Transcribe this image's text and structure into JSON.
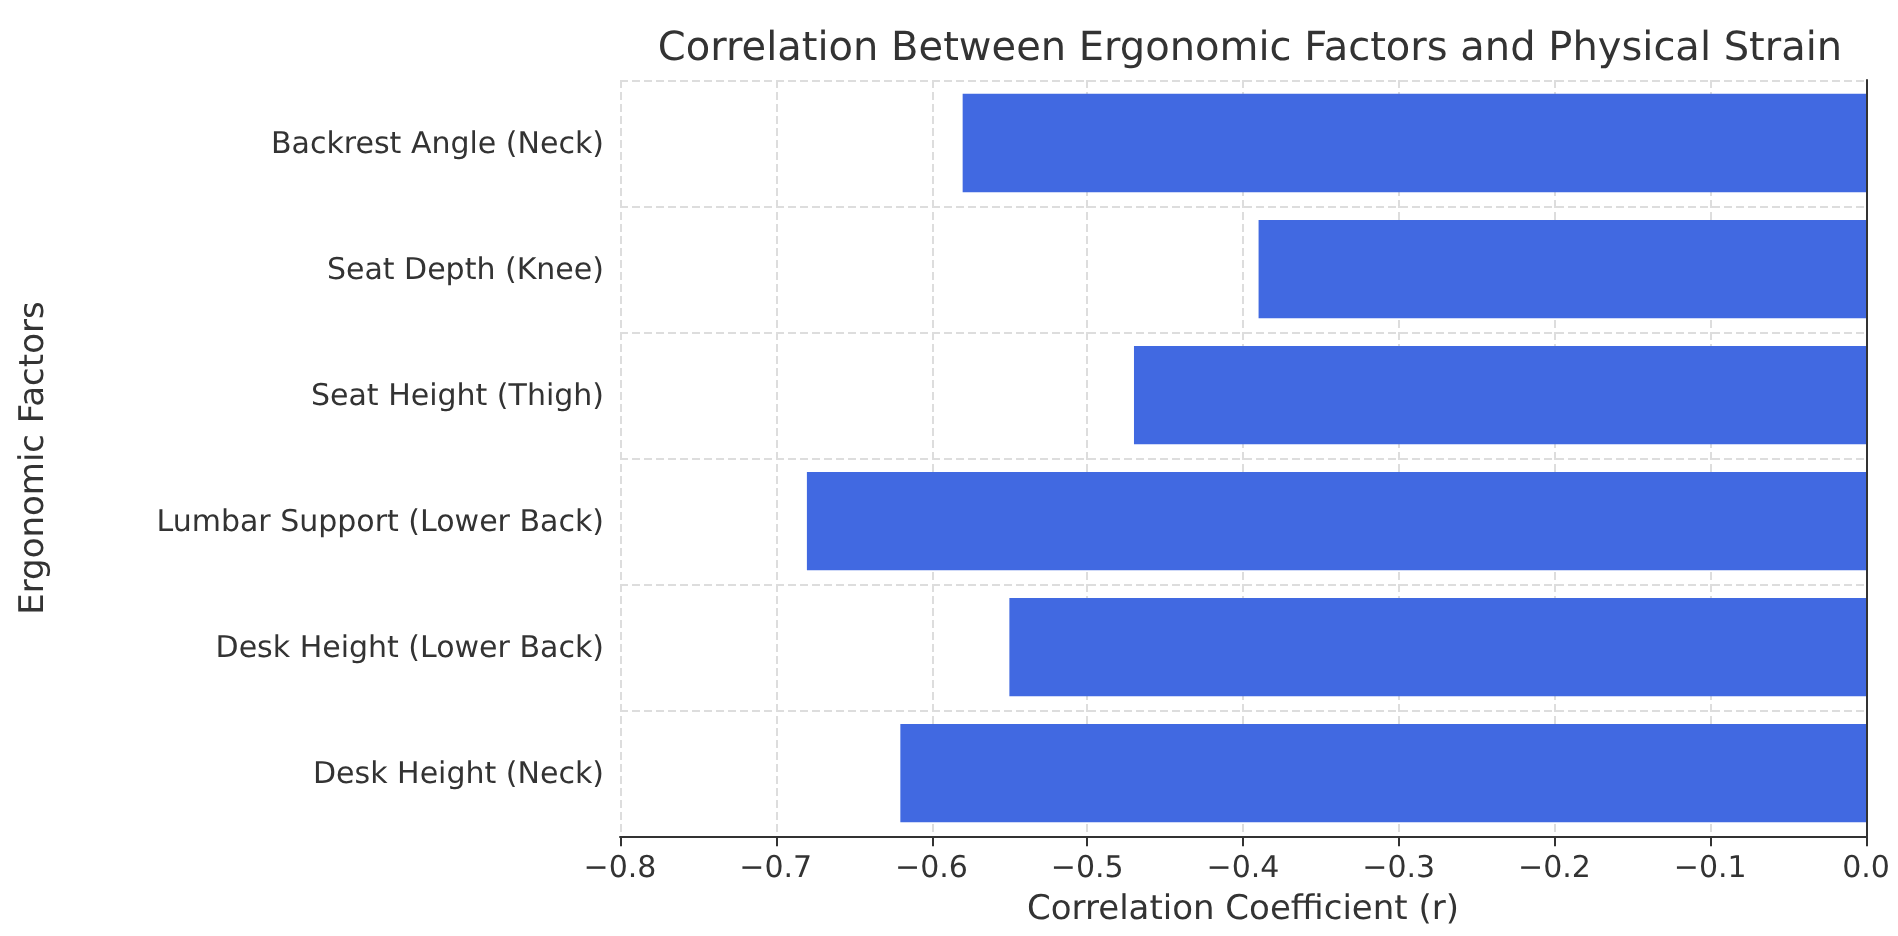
{
  "chart_data": {
    "type": "bar",
    "orientation": "horizontal",
    "title": "Correlation Between Ergonomic Factors and Physical Strain",
    "xlabel": "Correlation Coefficient (r)",
    "ylabel": "Ergonomic Factors",
    "categories": [
      "Backrest Angle (Neck)",
      "Seat Depth (Knee)",
      "Seat Height (Thigh)",
      "Lumbar Support (Lower Back)",
      "Desk Height (Lower Back)",
      "Desk Height (Neck)"
    ],
    "values": [
      -0.58,
      -0.39,
      -0.47,
      -0.68,
      -0.55,
      -0.62
    ],
    "color": "#4169e1",
    "xlim": [
      -0.8,
      0.0
    ],
    "xticks": [
      {
        "value": -0.8,
        "label": "−0.8"
      },
      {
        "value": -0.7,
        "label": "−0.7"
      },
      {
        "value": -0.6,
        "label": "−0.6"
      },
      {
        "value": -0.5,
        "label": "−0.5"
      },
      {
        "value": -0.4,
        "label": "−0.4"
      },
      {
        "value": -0.3,
        "label": "−0.3"
      },
      {
        "value": -0.2,
        "label": "−0.2"
      },
      {
        "value": -0.1,
        "label": "−0.1"
      },
      {
        "value": 0,
        "label": "0.0"
      }
    ],
    "grid": true
  }
}
